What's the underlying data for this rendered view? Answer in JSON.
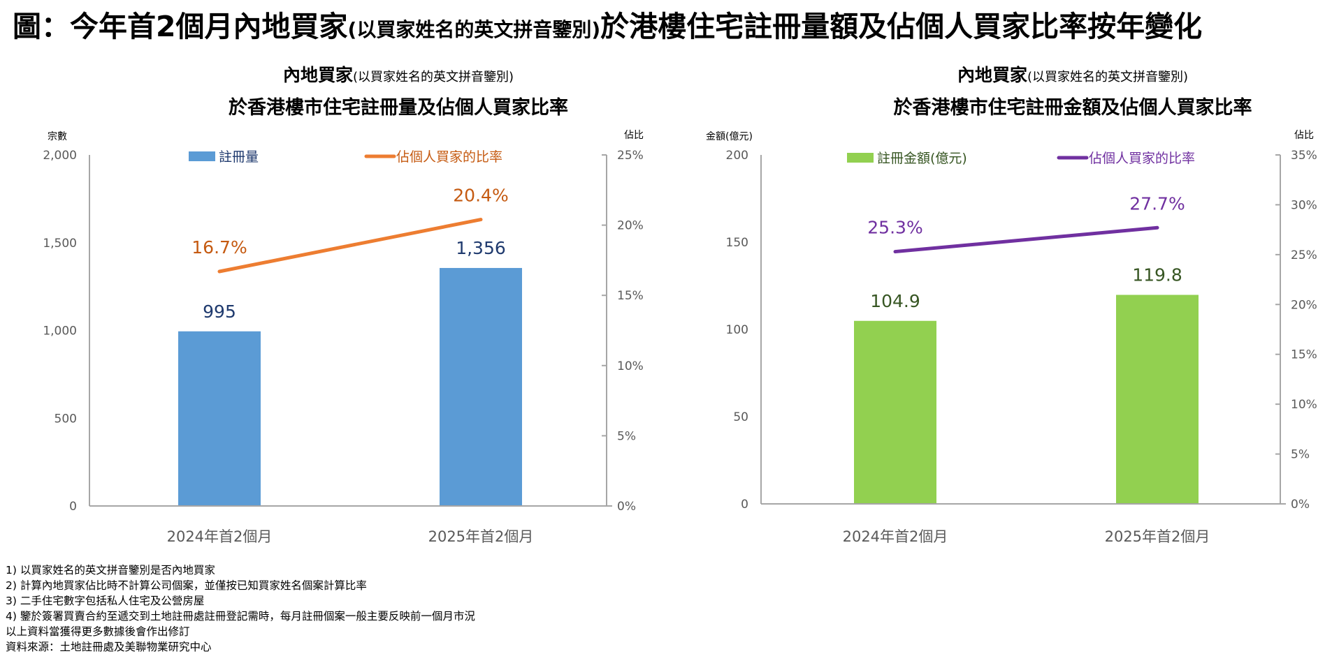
{
  "title": {
    "main_prefix": "圖：今年首2個月內地買家",
    "main_paren": "(以買家姓名的英文拼音鑒別)",
    "main_suffix": "於港樓住宅註冊量額及佔個人買家比率按年變化"
  },
  "chart_data": [
    {
      "type": "bar",
      "title_line1": "內地買家",
      "title_line1_paren": "(以買家姓名的英文拼音鑒別)",
      "title_line2": "於香港樓市住宅註冊量及佔個人買家比率",
      "categories": [
        "2024年首2個月",
        "2025年首2個月"
      ],
      "ylabel": "宗數",
      "y2label": "佔比",
      "ylim": [
        0,
        2000
      ],
      "yticks": [
        0,
        500,
        1000,
        1500,
        2000
      ],
      "ytick_labels": [
        "0",
        "500",
        "1,000",
        "1,500",
        "2,000"
      ],
      "y2lim": [
        0,
        25
      ],
      "y2ticks": [
        0,
        5,
        10,
        15,
        20,
        25
      ],
      "y2tick_labels": [
        "0%",
        "5%",
        "10%",
        "15%",
        "20%",
        "25%"
      ],
      "grid": false,
      "legend": "top",
      "series": [
        {
          "name": "註冊量",
          "kind": "bar",
          "axis": "left",
          "color": "#5B9BD5",
          "label_color": "#1F3A6E",
          "values": [
            995,
            1356
          ],
          "labels": [
            "995",
            "1,356"
          ]
        },
        {
          "name": "佔個人買家的比率",
          "kind": "line",
          "axis": "right",
          "color": "#ED7D31",
          "label_color": "#C55A11",
          "values": [
            16.7,
            20.4
          ],
          "labels": [
            "16.7%",
            "20.4%"
          ]
        }
      ]
    },
    {
      "type": "bar",
      "title_line1": "內地買家",
      "title_line1_paren": "(以買家姓名的英文拼音鑒別)",
      "title_line2": "於香港樓市住宅註冊金額及佔個人買家比率",
      "categories": [
        "2024年首2個月",
        "2025年首2個月"
      ],
      "ylabel": "金額(億元)",
      "y2label": "佔比",
      "ylim": [
        0,
        200
      ],
      "yticks": [
        0,
        50,
        100,
        150,
        200
      ],
      "ytick_labels": [
        "0",
        "50",
        "100",
        "150",
        "200"
      ],
      "y2lim": [
        0,
        35
      ],
      "y2ticks": [
        0,
        5,
        10,
        15,
        20,
        25,
        30,
        35
      ],
      "y2tick_labels": [
        "0%",
        "5%",
        "10%",
        "15%",
        "20%",
        "25%",
        "30%",
        "35%"
      ],
      "grid": false,
      "legend": "top",
      "series": [
        {
          "name": "註冊金額(億元)",
          "kind": "bar",
          "axis": "left",
          "color": "#92D050",
          "label_color": "#375623",
          "values": [
            104.9,
            119.8
          ],
          "labels": [
            "104.9",
            "119.8"
          ]
        },
        {
          "name": "佔個人買家的比率",
          "kind": "line",
          "axis": "right",
          "color": "#7030A0",
          "label_color": "#7030A0",
          "values": [
            25.3,
            27.7
          ],
          "labels": [
            "25.3%",
            "27.7%"
          ]
        }
      ]
    }
  ],
  "notes": [
    "1) 以買家姓名的英文拼音鑒別是否內地買家",
    "2) 計算內地買家佔比時不計算公司個案，並僅按已知買家姓名個案計算比率",
    "3) 二手住宅數字包括私人住宅及公營房屋",
    "4) 鑒於簽署買賣合約至遞交到土地註冊處註冊登記需時，每月註冊個案一般主要反映前一個月市況",
    "以上資料當獲得更多數據後會作出修訂",
    "資料來源：土地註冊處及美聯物業研究中心"
  ]
}
